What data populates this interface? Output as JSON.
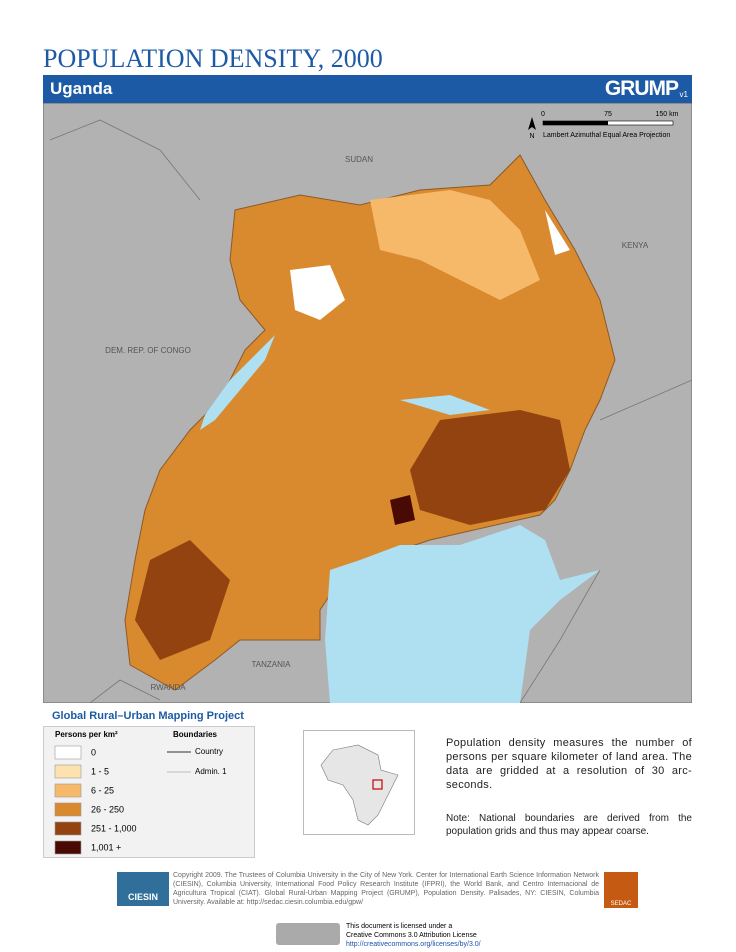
{
  "header": {
    "title": "POPULATION DENSITY, 2000",
    "country": "Uganda",
    "logo": "GRUMP",
    "logo_version": "v1"
  },
  "map": {
    "labels": [
      "SUDAN",
      "KENYA",
      "DEM. REP. OF CONGO",
      "TANZANIA",
      "RWANDA"
    ],
    "scale": {
      "ticks": [
        "0",
        "75",
        "150 km"
      ],
      "north": "N",
      "projection": "Lambert Azimuthal Equal Area Projection"
    }
  },
  "project": "Global Rural–Urban Mapping Project",
  "legend": {
    "title": "Persons per km²",
    "classes": [
      {
        "label": "0",
        "color": "#ffffff"
      },
      {
        "label": "1 - 5",
        "color": "#fde2b0"
      },
      {
        "label": "6 - 25",
        "color": "#f6b869"
      },
      {
        "label": "26 - 250",
        "color": "#d9892e"
      },
      {
        "label": "251 - 1,000",
        "color": "#93430f"
      },
      {
        "label": "1,001 +",
        "color": "#4a0a04"
      }
    ],
    "boundaries_title": "Boundaries",
    "boundaries": [
      "Country",
      "Admin. 1"
    ]
  },
  "description": "Population density measures the number of persons per square kilometer of land area. The data are gridded at a resolution of 30 arc-seconds.",
  "note": "Note: National boundaries are derived from the population grids and thus may appear coarse.",
  "copyright": "Copyright 2009. The Trustees of Columbia University in the City of New York. Center for International Earth Science Information Network (CIESIN), Columbia University, International Food Policy Research Institute (IFPRI), the World Bank, and Centro Internacional de Agricultura Tropical (CIAT). Global Rural-Urban Mapping Project (GRUMP), Population Density. Palisades, NY: CIESIN, Columbia University. Available at: http://sedac.ciesin.columbia.edu/gpw/",
  "ciesin": "CIESIN",
  "sedac": "SEDAC",
  "license": [
    "This document is licensed under a",
    "Creative Commons 3.0 Attribution License",
    "http://creativecommons.org/licenses/by/3.0/"
  ]
}
